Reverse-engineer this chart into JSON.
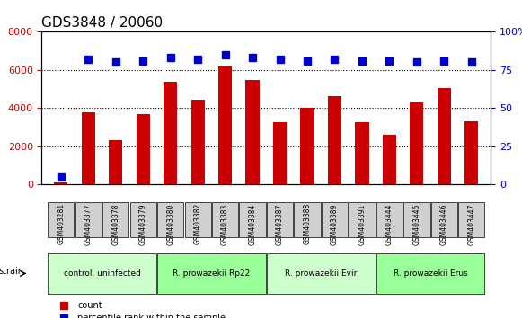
{
  "title": "GDS3848 / 20060",
  "samples": [
    "GSM403281",
    "GSM403377",
    "GSM403378",
    "GSM403379",
    "GSM403380",
    "GSM403382",
    "GSM403383",
    "GSM403384",
    "GSM403387",
    "GSM403388",
    "GSM403389",
    "GSM403391",
    "GSM403444",
    "GSM403445",
    "GSM403446",
    "GSM403447"
  ],
  "counts": [
    100,
    3800,
    2300,
    3700,
    5400,
    4450,
    6200,
    5500,
    3250,
    4000,
    4650,
    3250,
    2600,
    4300,
    5050,
    3300
  ],
  "percentiles": [
    5,
    82,
    80,
    81,
    83,
    82,
    85,
    83,
    82,
    81,
    82,
    81,
    81,
    80,
    81,
    80
  ],
  "ylim_left": [
    0,
    8000
  ],
  "ylim_right": [
    0,
    100
  ],
  "yticks_left": [
    0,
    2000,
    4000,
    6000,
    8000
  ],
  "yticks_right": [
    0,
    25,
    50,
    75,
    100
  ],
  "bar_color": "#cc0000",
  "dot_color": "#0000cc",
  "grid_color": "#000000",
  "bg_color": "#ffffff",
  "strain_groups": [
    {
      "label": "control, uninfected",
      "start": 0,
      "end": 3,
      "color": "#ccffcc"
    },
    {
      "label": "R. prowazekii Rp22",
      "start": 4,
      "end": 7,
      "color": "#99ff99"
    },
    {
      "label": "R. prowazekii Evir",
      "start": 8,
      "end": 11,
      "color": "#ccffcc"
    },
    {
      "label": "R. prowazekii Erus",
      "start": 12,
      "end": 15,
      "color": "#99ff99"
    }
  ],
  "strain_label": "strain",
  "legend_count_label": "count",
  "legend_percentile_label": "percentile rank within the sample",
  "title_fontsize": 11,
  "tick_label_fontsize": 7,
  "axis_label_fontsize": 8
}
